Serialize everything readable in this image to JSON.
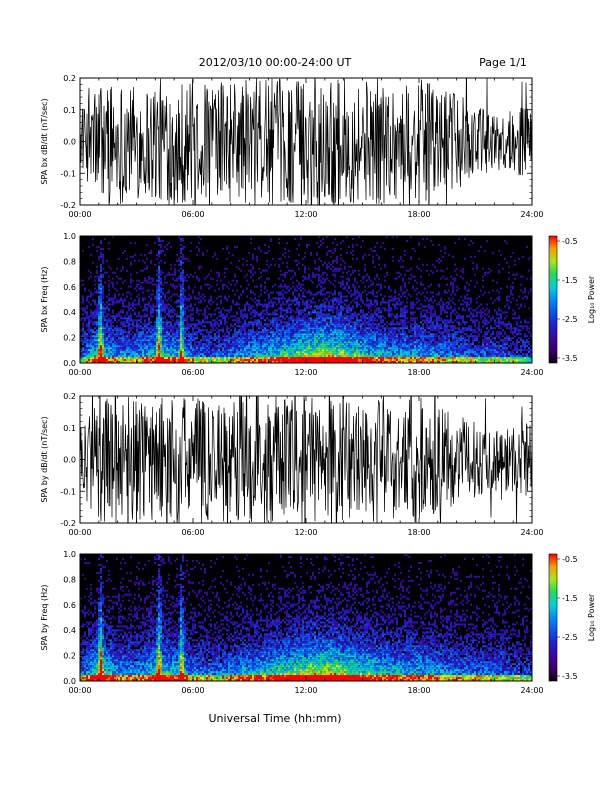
{
  "header": {
    "date_range": "2012/03/10   00:00-24:00 UT",
    "page": "Page 1/1"
  },
  "xlabel": "Universal Time (hh:mm)",
  "x_ticks": [
    "00:00",
    "06:00",
    "12:00",
    "18:00",
    "24:00"
  ],
  "colorbar": {
    "label": "Log₁₀ Power",
    "ticks": [
      "-0.5",
      "-1.5",
      "-2.5",
      "-3.5"
    ]
  },
  "chart_data": [
    {
      "type": "line",
      "title": "",
      "xlabel": "",
      "ylabel": "SPA bx dB/dt (nT/sec)",
      "xlim": [
        0,
        24
      ],
      "ylim": [
        -0.2,
        0.2
      ],
      "y_ticks": [
        "-0.2",
        "-0.1",
        "0.0",
        "0.1",
        "0.2"
      ],
      "color": "#000000",
      "series": [
        {
          "x": [
            0,
            1,
            2,
            3,
            4,
            5,
            6,
            7,
            8,
            9,
            10,
            11,
            12,
            13,
            14,
            15,
            16,
            17,
            18,
            19,
            20,
            21,
            22,
            23,
            24
          ],
          "envelope": [
            0.08,
            0.2,
            0.2,
            0.18,
            0.2,
            0.2,
            0.2,
            0.18,
            0.2,
            0.2,
            0.2,
            0.2,
            0.2,
            0.2,
            0.2,
            0.2,
            0.2,
            0.18,
            0.2,
            0.17,
            0.15,
            0.12,
            0.09,
            0.1,
            0.12
          ]
        }
      ]
    },
    {
      "type": "heatmap",
      "title": "",
      "xlabel": "",
      "ylabel": "SPA bx Freq (Hz)",
      "xlim": [
        0,
        24
      ],
      "ylim": [
        0,
        1.0
      ],
      "y_ticks": [
        "0.0",
        "0.2",
        "0.4",
        "0.6",
        "0.8",
        "1.0"
      ],
      "color_range": [
        -3.5,
        -0.5
      ],
      "bursts_hours": [
        1.1,
        4.2,
        5.4
      ],
      "activity_profile": [
        0.35,
        0.7,
        0.5,
        0.5,
        0.65,
        0.6,
        0.45,
        0.4,
        0.45,
        0.55,
        0.6,
        0.7,
        0.8,
        0.85,
        0.8,
        0.65,
        0.6,
        0.55,
        0.55,
        0.5,
        0.45,
        0.4,
        0.4,
        0.35,
        0.3
      ]
    },
    {
      "type": "line",
      "title": "",
      "xlabel": "",
      "ylabel": "SPA by dB/dt (nT/sec)",
      "xlim": [
        0,
        24
      ],
      "ylim": [
        -0.2,
        0.2
      ],
      "y_ticks": [
        "-0.2",
        "-0.1",
        "0.0",
        "0.1",
        "0.2"
      ],
      "color": "#000000",
      "series": [
        {
          "x": [
            0,
            1,
            2,
            3,
            4,
            5,
            6,
            7,
            8,
            9,
            10,
            11,
            12,
            13,
            14,
            15,
            16,
            17,
            18,
            19,
            20,
            21,
            22,
            23,
            24
          ],
          "envelope": [
            0.1,
            0.2,
            0.2,
            0.2,
            0.2,
            0.2,
            0.2,
            0.2,
            0.2,
            0.2,
            0.2,
            0.2,
            0.2,
            0.2,
            0.2,
            0.2,
            0.2,
            0.2,
            0.2,
            0.17,
            0.14,
            0.12,
            0.1,
            0.11,
            0.13
          ]
        }
      ]
    },
    {
      "type": "heatmap",
      "title": "",
      "xlabel": "",
      "ylabel": "SPA by Freq (Hz)",
      "xlim": [
        0,
        24
      ],
      "ylim": [
        0,
        1.0
      ],
      "y_ticks": [
        "0.0",
        "0.2",
        "0.4",
        "0.6",
        "0.8",
        "1.0"
      ],
      "color_range": [
        -3.5,
        -0.5
      ],
      "bursts_hours": [
        1.1,
        4.2,
        5.4
      ],
      "activity_profile": [
        0.4,
        0.75,
        0.55,
        0.5,
        0.7,
        0.65,
        0.5,
        0.45,
        0.5,
        0.6,
        0.65,
        0.75,
        0.85,
        0.9,
        0.85,
        0.7,
        0.65,
        0.6,
        0.6,
        0.55,
        0.5,
        0.45,
        0.45,
        0.4,
        0.35
      ]
    }
  ]
}
